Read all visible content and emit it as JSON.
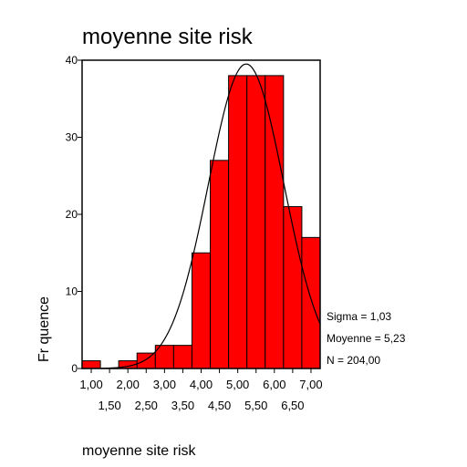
{
  "chart_data": {
    "type": "bar",
    "title": "moyenne site risk",
    "xlabel": "moyenne site risk",
    "ylabel": "Fr quence",
    "bin_centers": [
      1.0,
      1.5,
      2.0,
      2.5,
      3.0,
      3.5,
      4.0,
      4.5,
      5.0,
      5.5,
      6.0,
      6.5,
      7.0
    ],
    "values": [
      1,
      0,
      1,
      2,
      3,
      3,
      15,
      27,
      38,
      38,
      38,
      21,
      17
    ],
    "bar_color": "#ff0000",
    "xlim": [
      0.75,
      7.25
    ],
    "ylim": [
      0,
      40
    ],
    "x_ticks_row1": [
      "1,00",
      "2,00",
      "3,00",
      "4,00",
      "5,00",
      "6,00",
      "7,00"
    ],
    "x_ticks_row2": [
      "1,50",
      "2,50",
      "3,50",
      "4,50",
      "5,50",
      "6,50"
    ],
    "y_ticks": [
      0,
      10,
      20,
      30,
      40
    ],
    "normal_curve": {
      "mean": 5.23,
      "sigma": 1.03,
      "n": 204,
      "bin_width": 0.5
    },
    "stats": [
      "Sigma = 1,03",
      "Moyenne = 5,23",
      "N = 204,00"
    ],
    "grid": false
  }
}
